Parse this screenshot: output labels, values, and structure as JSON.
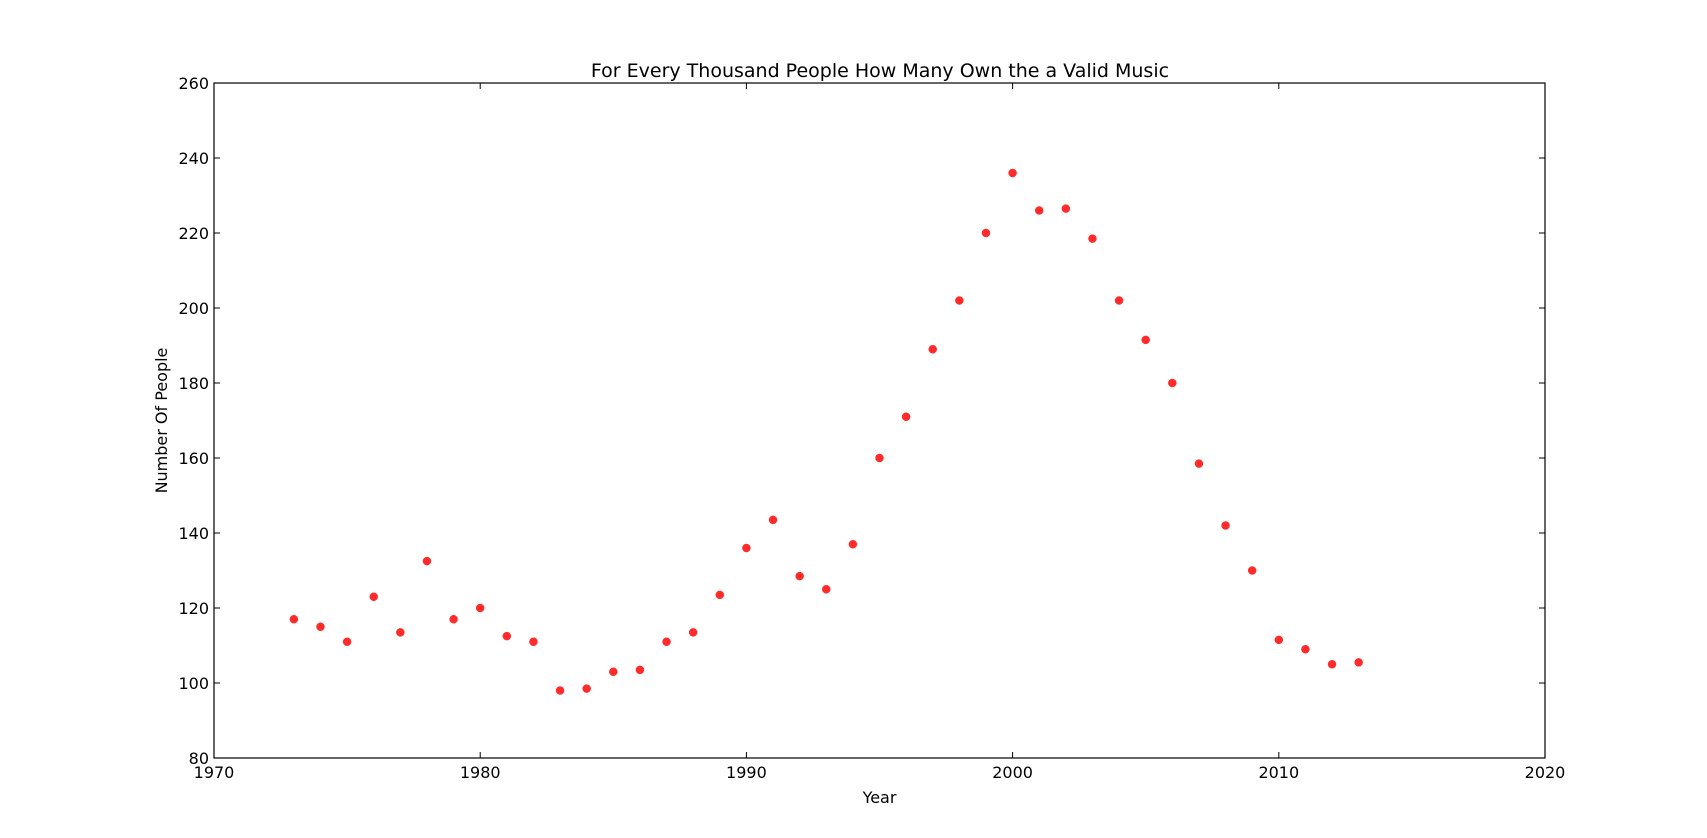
{
  "chart_data": {
    "type": "scatter",
    "title": "For Every Thousand People How Many Own the a Valid Music",
    "xlabel": "Year",
    "ylabel": "Number Of People",
    "xlim": [
      1970,
      2020
    ],
    "ylim": [
      80,
      260
    ],
    "xticks": [
      "1970",
      "1980",
      "1990",
      "2000",
      "2010",
      "2020"
    ],
    "yticks": [
      "80",
      "100",
      "120",
      "140",
      "160",
      "180",
      "200",
      "220",
      "240",
      "260"
    ],
    "grid": false,
    "legend": "none",
    "series": [
      {
        "color": "#ff2a2a",
        "x": [
          1973,
          1974,
          1975,
          1976,
          1977,
          1978,
          1979,
          1980,
          1981,
          1982,
          1983,
          1984,
          1985,
          1986,
          1987,
          1988,
          1989,
          1990,
          1991,
          1992,
          1993,
          1994,
          1995,
          1996,
          1997,
          1998,
          1999,
          2000,
          2001,
          2002,
          2003,
          2004,
          2005,
          2006,
          2007,
          2008,
          2009,
          2010,
          2011,
          2012,
          2013
        ],
        "y": [
          117,
          115,
          111,
          123,
          113.5,
          132.5,
          117,
          120,
          112.5,
          111,
          98,
          98.5,
          103,
          103.5,
          111,
          113.5,
          123.5,
          136,
          143.5,
          128.5,
          125,
          137,
          160,
          171,
          189,
          202,
          220,
          236,
          226,
          226.5,
          218.5,
          202,
          191.5,
          180,
          158.5,
          142,
          130,
          111.5,
          109,
          105,
          105.5
        ]
      }
    ]
  }
}
